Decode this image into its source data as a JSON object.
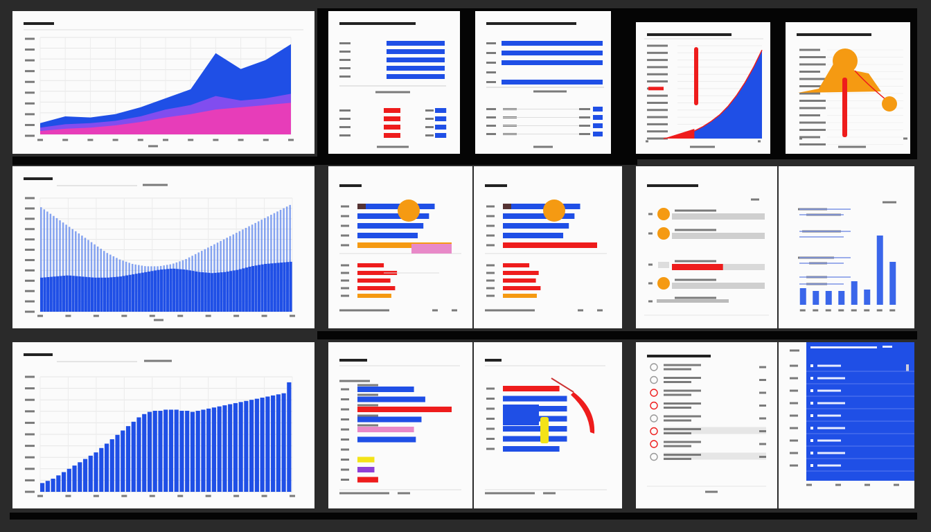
{
  "colors": {
    "blue": "#1f4fe6",
    "violet": "#8a4df0",
    "magenta": "#f03cb4",
    "red": "#ee1c1c",
    "orange": "#f59a12",
    "yellow": "#f3e318",
    "purple": "#8e3fd6",
    "pink": "#e889c8",
    "gray": "#cfcfcf",
    "panel": "#fbfbfb",
    "frame": "#050505"
  },
  "chart_data": [
    {
      "id": "c1",
      "type": "area",
      "grid": true,
      "x": [
        1,
        2,
        3,
        4,
        5,
        6,
        7,
        8,
        9,
        10,
        11
      ],
      "series": [
        {
          "color": "blue",
          "values": [
            10,
            16,
            15,
            18,
            24,
            32,
            40,
            72,
            58,
            66,
            80
          ]
        },
        {
          "color": "violet",
          "values": [
            6,
            9,
            10,
            12,
            16,
            22,
            26,
            34,
            30,
            32,
            36
          ]
        },
        {
          "color": "magenta",
          "values": [
            3,
            5,
            6,
            8,
            11,
            15,
            18,
            22,
            24,
            26,
            28
          ]
        }
      ]
    },
    {
      "id": "c2",
      "type": "bar",
      "orientation": "horizontal",
      "groups": [
        {
          "values": [
            100,
            100,
            100,
            100,
            100
          ],
          "colors": [
            "blue",
            "blue",
            "blue",
            "blue",
            "blue"
          ]
        },
        {
          "values": [
            30,
            30,
            30,
            30
          ],
          "colors": [
            "red",
            "red",
            "red",
            "red"
          ]
        },
        {
          "values": [
            18,
            18,
            18,
            18
          ],
          "colors": [
            "blue",
            "blue",
            "blue",
            "blue"
          ]
        }
      ]
    },
    {
      "id": "c3",
      "type": "bar",
      "orientation": "horizontal",
      "groups": [
        {
          "values": [
            100,
            100,
            100,
            0,
            100
          ],
          "colors": [
            "blue",
            "blue",
            "blue",
            "blue",
            "blue"
          ]
        },
        {
          "values": [
            10,
            10,
            10,
            10
          ],
          "colors": [
            "blue",
            "blue",
            "blue",
            "blue"
          ]
        }
      ]
    },
    {
      "id": "c4",
      "type": "area",
      "grid": true,
      "x": [
        0,
        1,
        2,
        3,
        4,
        5,
        6,
        7,
        8,
        9,
        10
      ],
      "series": [
        {
          "color": "blue",
          "values": [
            2,
            4,
            7,
            11,
            16,
            22,
            30,
            40,
            52,
            66,
            82
          ]
        }
      ]
    },
    {
      "id": "c5",
      "type": "line",
      "x": [
        0,
        1,
        2,
        3,
        4,
        5,
        6
      ],
      "series": [
        {
          "color": "orange",
          "values": [
            20,
            22,
            50,
            80,
            70,
            40,
            30
          ]
        }
      ]
    },
    {
      "id": "c6",
      "type": "bar",
      "grid": true,
      "x_count": 80,
      "series": [
        {
          "color": "blue",
          "role": "light",
          "values": [
            92,
            84,
            76,
            68,
            60,
            52,
            46,
            42,
            40,
            40,
            42,
            46,
            52,
            58,
            64,
            70,
            76,
            82,
            88,
            94
          ]
        },
        {
          "color": "blue",
          "role": "dark",
          "values": [
            30,
            31,
            32,
            31,
            30,
            30,
            31,
            33,
            35,
            37,
            38,
            37,
            35,
            34,
            35,
            37,
            40,
            42,
            43,
            44
          ]
        }
      ]
    },
    {
      "id": "c7",
      "type": "bar",
      "orientation": "horizontal",
      "groups": [
        {
          "values": [
            82,
            76,
            70,
            64,
            100
          ],
          "colors": [
            "blue",
            "blue",
            "blue",
            "blue",
            "orange"
          ]
        },
        {
          "values": [
            28,
            42,
            35,
            40,
            36
          ],
          "colors": [
            "red",
            "red",
            "red",
            "red",
            "orange"
          ]
        }
      ]
    },
    {
      "id": "c8",
      "type": "bar",
      "orientation": "horizontal",
      "groups": [
        {
          "values": [
            82,
            76,
            70,
            64,
            100
          ],
          "colors": [
            "blue",
            "blue",
            "blue",
            "blue",
            "red"
          ]
        },
        {
          "values": [
            28,
            38,
            35,
            40,
            36
          ],
          "colors": [
            "red",
            "red",
            "red",
            "red",
            "orange"
          ]
        }
      ]
    },
    {
      "id": "c9",
      "type": "bar",
      "orientation": "horizontal",
      "groups": [
        {
          "values": [
            100,
            100,
            55,
            100,
            100
          ],
          "colors": [
            "gray",
            "gray",
            "red",
            "gray",
            "gray"
          ]
        }
      ]
    },
    {
      "id": "c10",
      "type": "bar",
      "grid": false,
      "categories": [
        "",
        "",
        "",
        "",
        "",
        "",
        "",
        ""
      ],
      "values": [
        24,
        20,
        20,
        20,
        34,
        22,
        100,
        62
      ],
      "ylim": [
        0,
        100
      ]
    },
    {
      "id": "c11",
      "type": "bar",
      "grid": true,
      "x_count": 62,
      "values": [
        8,
        10,
        12,
        15,
        18,
        21,
        24,
        27,
        30,
        33,
        36,
        40,
        44,
        48,
        52,
        56,
        60,
        64,
        68,
        71,
        73,
        74,
        74,
        75,
        75,
        75,
        74,
        74,
        73,
        74,
        75,
        76,
        77,
        78,
        79,
        80,
        81,
        82,
        83,
        84,
        85,
        86,
        87,
        88,
        89,
        90,
        100
      ],
      "ylim": [
        0,
        105
      ]
    },
    {
      "id": "c12",
      "type": "bar",
      "orientation": "horizontal",
      "groups": [
        {
          "values": [
            60,
            72,
            100,
            68,
            60,
            62,
            0,
            18,
            18,
            22
          ],
          "colors": [
            "blue",
            "blue",
            "red",
            "blue",
            "pink",
            "blue",
            "gray",
            "yellow",
            "purple",
            "red"
          ]
        }
      ]
    },
    {
      "id": "c13",
      "type": "bar",
      "orientation": "horizontal",
      "groups": [
        {
          "values": [
            60,
            68,
            68,
            68,
            68,
            68,
            60
          ],
          "colors": [
            "red",
            "blue",
            "blue",
            "blue",
            "blue",
            "blue",
            "blue"
          ]
        }
      ]
    },
    {
      "id": "c14",
      "type": "table",
      "rows": 8
    },
    {
      "id": "c15",
      "type": "table",
      "rows": 9
    }
  ]
}
